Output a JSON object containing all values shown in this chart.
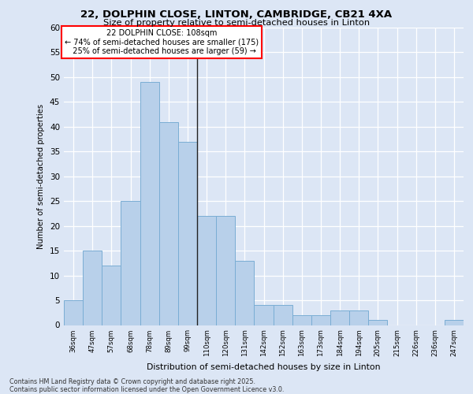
{
  "title1": "22, DOLPHIN CLOSE, LINTON, CAMBRIDGE, CB21 4XA",
  "title2": "Size of property relative to semi-detached houses in Linton",
  "xlabel": "Distribution of semi-detached houses by size in Linton",
  "ylabel": "Number of semi-detached properties",
  "categories": [
    "36sqm",
    "47sqm",
    "57sqm",
    "68sqm",
    "78sqm",
    "89sqm",
    "99sqm",
    "110sqm",
    "120sqm",
    "131sqm",
    "142sqm",
    "152sqm",
    "163sqm",
    "173sqm",
    "184sqm",
    "194sqm",
    "205sqm",
    "215sqm",
    "226sqm",
    "236sqm",
    "247sqm"
  ],
  "values": [
    5,
    15,
    12,
    25,
    49,
    41,
    37,
    22,
    22,
    13,
    4,
    4,
    2,
    2,
    3,
    3,
    1,
    0,
    0,
    0,
    1
  ],
  "bar_color": "#b8d0ea",
  "bar_edge_color": "#7aadd4",
  "ylim": [
    0,
    60
  ],
  "yticks": [
    0,
    5,
    10,
    15,
    20,
    25,
    30,
    35,
    40,
    45,
    50,
    55,
    60
  ],
  "background_color": "#dce6f5",
  "plot_bg_color": "#dce6f5",
  "grid_color": "#ffffff",
  "vline_x": 6.5,
  "property_label": "22 DOLPHIN CLOSE: 108sqm",
  "pct_smaller": 74,
  "n_smaller": 175,
  "pct_larger": 25,
  "n_larger": 59,
  "footer1": "Contains HM Land Registry data © Crown copyright and database right 2025.",
  "footer2": "Contains public sector information licensed under the Open Government Licence v3.0."
}
